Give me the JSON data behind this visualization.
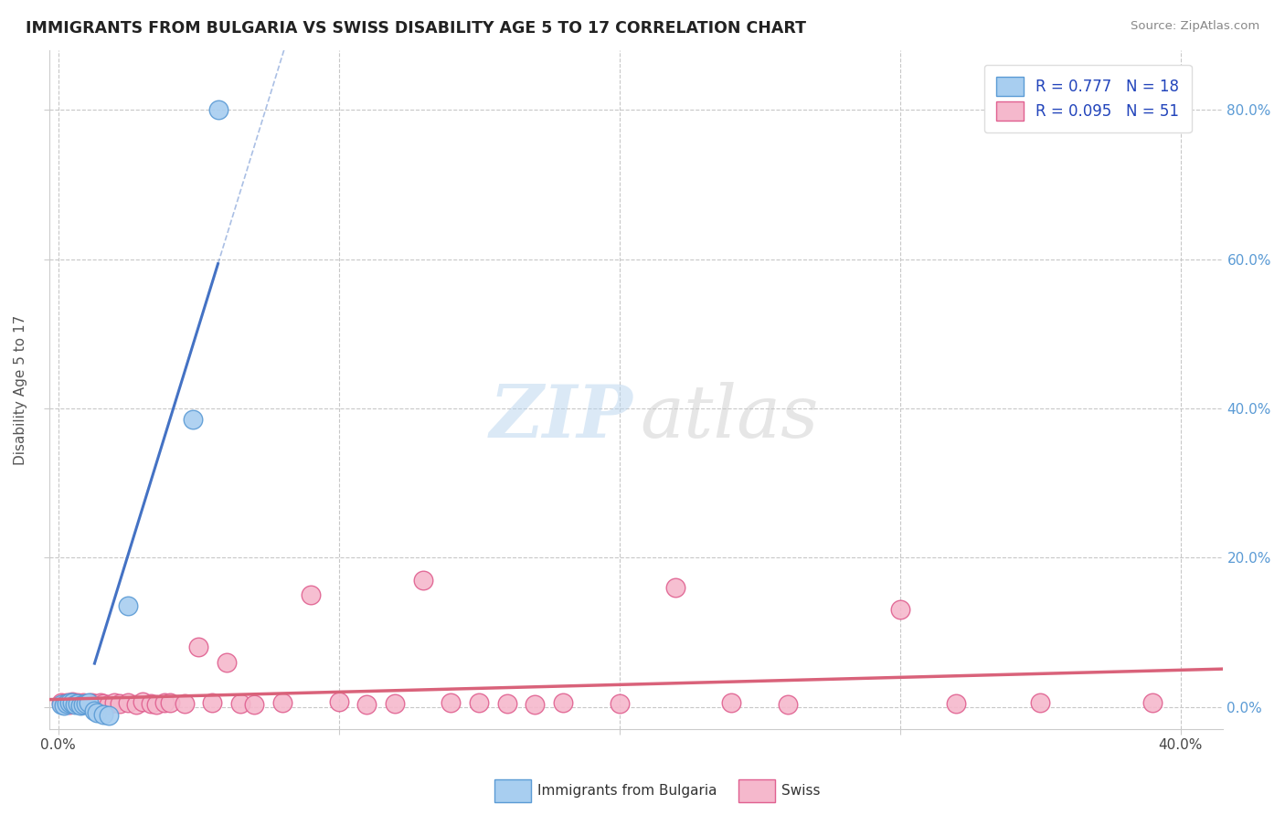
{
  "title": "IMMIGRANTS FROM BULGARIA VS SWISS DISABILITY AGE 5 TO 17 CORRELATION CHART",
  "source": "Source: ZipAtlas.com",
  "ylabel": "Disability Age 5 to 17",
  "xlim": [
    -0.003,
    0.415
  ],
  "ylim": [
    -0.03,
    0.88
  ],
  "xticks": [
    0.0,
    0.1,
    0.2,
    0.3,
    0.4
  ],
  "yticks": [
    0.0,
    0.2,
    0.4,
    0.6,
    0.8
  ],
  "xtick_labels_left": [
    "0.0%",
    "",
    "",
    "",
    ""
  ],
  "xtick_labels_right": [
    "",
    "",
    "",
    "",
    "40.0%"
  ],
  "ytick_labels_right": [
    "0.0%",
    "20.0%",
    "40.0%",
    "60.0%",
    "80.0%"
  ],
  "bg_color": "#ffffff",
  "grid_color": "#c8c8c8",
  "blue_color": "#a8cef0",
  "pink_color": "#f5b8cc",
  "blue_edge_color": "#5b9bd5",
  "pink_edge_color": "#e06090",
  "blue_line_color": "#4472c4",
  "pink_line_color": "#d9627a",
  "bulgaria_x": [
    0.001,
    0.002,
    0.003,
    0.004,
    0.005,
    0.006,
    0.007,
    0.008,
    0.009,
    0.01,
    0.011,
    0.013,
    0.014,
    0.016,
    0.018,
    0.025,
    0.048,
    0.057
  ],
  "bulgaria_y": [
    0.003,
    0.002,
    0.004,
    0.005,
    0.006,
    0.003,
    0.004,
    0.002,
    0.003,
    0.004,
    0.005,
    -0.005,
    -0.008,
    -0.01,
    -0.012,
    0.135,
    0.385,
    0.8
  ],
  "swiss_x": [
    0.001,
    0.002,
    0.003,
    0.004,
    0.005,
    0.006,
    0.007,
    0.008,
    0.009,
    0.01,
    0.011,
    0.012,
    0.013,
    0.014,
    0.015,
    0.016,
    0.018,
    0.02,
    0.022,
    0.025,
    0.028,
    0.03,
    0.033,
    0.035,
    0.038,
    0.04,
    0.045,
    0.05,
    0.055,
    0.06,
    0.065,
    0.07,
    0.08,
    0.09,
    0.1,
    0.11,
    0.12,
    0.13,
    0.14,
    0.15,
    0.16,
    0.17,
    0.18,
    0.2,
    0.22,
    0.24,
    0.26,
    0.3,
    0.32,
    0.35,
    0.39
  ],
  "swiss_y": [
    0.005,
    0.004,
    0.006,
    0.003,
    0.007,
    0.004,
    0.005,
    0.003,
    0.006,
    0.004,
    0.003,
    0.005,
    0.004,
    0.003,
    0.005,
    0.004,
    0.003,
    0.005,
    0.004,
    0.006,
    0.003,
    0.007,
    0.004,
    0.003,
    0.005,
    0.006,
    0.004,
    0.08,
    0.005,
    0.06,
    0.004,
    0.003,
    0.005,
    0.15,
    0.007,
    0.003,
    0.004,
    0.17,
    0.005,
    0.005,
    0.004,
    0.003,
    0.005,
    0.004,
    0.16,
    0.006,
    0.003,
    0.13,
    0.004,
    0.005,
    0.006
  ],
  "blue_trend_x0": 0.0,
  "blue_trend_x1": 0.057,
  "blue_trend_solid_x0": 0.013,
  "blue_trend_solid_x1": 0.057,
  "blue_trend_dash_x0": 0.0,
  "blue_trend_dash_x1": 0.33,
  "marker_size": 220
}
